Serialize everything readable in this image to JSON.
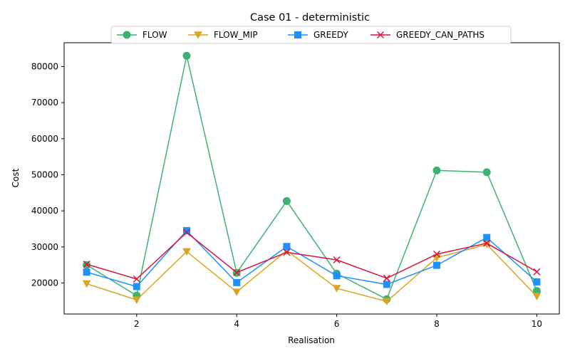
{
  "chart_data": {
    "type": "line",
    "title": "Case 01 - deterministic",
    "xlabel": "Realisation",
    "ylabel": "Cost",
    "x": [
      1,
      2,
      3,
      4,
      5,
      6,
      7,
      8,
      9,
      10
    ],
    "xlim": [
      0.55,
      10.45
    ],
    "ylim": [
      11400,
      86600
    ],
    "xticks": [
      2,
      4,
      6,
      8,
      10
    ],
    "yticks": [
      20000,
      30000,
      40000,
      50000,
      60000,
      70000,
      80000
    ],
    "grid": false,
    "legend_position": "top-center",
    "series": [
      {
        "name": "FLOW",
        "color": "#3cb371",
        "marker": "circle",
        "values": [
          25000,
          16500,
          83000,
          22800,
          42700,
          22600,
          15500,
          51200,
          50700,
          17800
        ]
      },
      {
        "name": "FLOW_MIP",
        "color": "#daa520",
        "marker": "triangle-down",
        "values": [
          19800,
          15300,
          28700,
          17500,
          29000,
          18500,
          14900,
          27000,
          30700,
          16300
        ]
      },
      {
        "name": "GREEDY",
        "color": "#1e90ff",
        "marker": "square",
        "values": [
          23000,
          19000,
          34500,
          20100,
          30100,
          22000,
          19600,
          24900,
          32600,
          20300
        ]
      },
      {
        "name": "GREEDY_CAN_PATHS",
        "color": "#dc143c",
        "marker": "x",
        "values": [
          25200,
          21100,
          34000,
          22900,
          28500,
          26400,
          21300,
          28000,
          31000,
          23100
        ]
      }
    ]
  }
}
